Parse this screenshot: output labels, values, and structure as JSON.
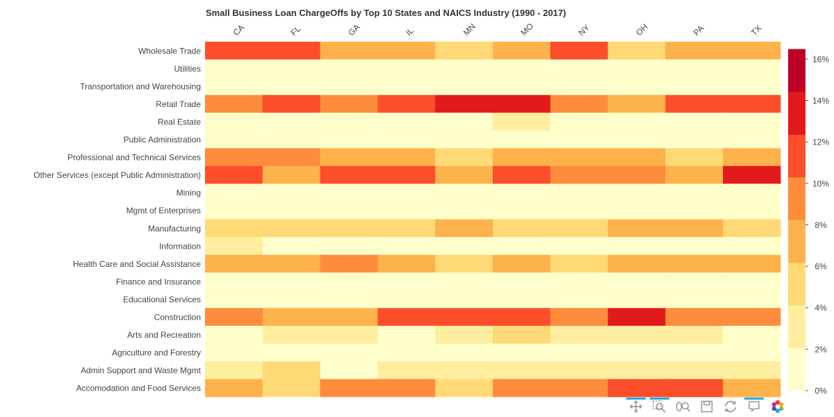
{
  "chart_data": {
    "type": "heatmap",
    "title": "Small Business Loan ChargeOffs by Top 10 States and NAICS Industry (1990 - 2017)",
    "x_categories": [
      "CA",
      "FL",
      "GA",
      "IL",
      "MN",
      "MO",
      "NY",
      "OH",
      "PA",
      "TX"
    ],
    "y_categories": [
      "Wholesale Trade",
      "Utilities",
      "Transportation and Warehousing",
      "Retail Trade",
      "Real Estate",
      "Public Administration",
      "Professional and Technical Services",
      "Other Services (except Public Administration)",
      "Mining",
      "Mgmt of Enterprises",
      "Manufacturing",
      "Information",
      "Health Care and Social Assistance",
      "Finance and Insurance",
      "Educational Services",
      "Construction",
      "Arts and Recreation",
      "Agriculture and Forestry",
      "Admin Support and Waste Mgmt",
      "Accomodation and Food Services"
    ],
    "values": [
      [
        11.5,
        11.5,
        7.5,
        7.5,
        5,
        7.5,
        11.5,
        5,
        7.5,
        7.5
      ],
      [
        0.5,
        0.5,
        0.5,
        0.5,
        0.5,
        0.5,
        0.5,
        0.5,
        0.5,
        0.5
      ],
      [
        0.5,
        0.5,
        0.5,
        0.5,
        0.5,
        0.5,
        0.5,
        0.5,
        0.5,
        0.5
      ],
      [
        9,
        11.5,
        9,
        11.5,
        13.5,
        13.5,
        9,
        7.5,
        11.5,
        11.5
      ],
      [
        0.5,
        0.5,
        0.5,
        0.5,
        0.5,
        3,
        0.5,
        0.5,
        0.5,
        0.5
      ],
      [
        0.5,
        0.5,
        0.5,
        0.5,
        0.5,
        0.5,
        0.5,
        0.5,
        0.5,
        0.5
      ],
      [
        9,
        9,
        7.5,
        7.5,
        5,
        7.5,
        7.5,
        7.5,
        5,
        7.5
      ],
      [
        11.5,
        7.5,
        11.5,
        11.5,
        7.5,
        11.5,
        9,
        9,
        7.5,
        13.5
      ],
      [
        0.5,
        0.5,
        0.5,
        0.5,
        0.5,
        0.5,
        0.5,
        0.5,
        0.5,
        0.5
      ],
      [
        0.5,
        0.5,
        0.5,
        0.5,
        0.5,
        0.5,
        0.5,
        0.5,
        0.5,
        0.5
      ],
      [
        5,
        5,
        5,
        5,
        7.5,
        5,
        5,
        7.5,
        7.5,
        5
      ],
      [
        3,
        0.5,
        0.5,
        0.5,
        0.5,
        0.5,
        0.5,
        0.5,
        0.5,
        0.5
      ],
      [
        7.5,
        7.5,
        9,
        7.5,
        5,
        7.5,
        5,
        7.5,
        7.5,
        7.5
      ],
      [
        0.5,
        0.5,
        0.5,
        0.5,
        0.5,
        0.5,
        0.5,
        0.5,
        0.5,
        0.5
      ],
      [
        0.5,
        0.5,
        0.5,
        0.5,
        0.5,
        0.5,
        0.5,
        0.5,
        0.5,
        0.5
      ],
      [
        9,
        7.5,
        7.5,
        11.5,
        11.5,
        11.5,
        9,
        13.5,
        9,
        9
      ],
      [
        1.5,
        3,
        3,
        1.5,
        3,
        5,
        3,
        3,
        3,
        1.5
      ],
      [
        0.5,
        0.5,
        0.5,
        0.5,
        0.5,
        0.5,
        0.5,
        0.5,
        0.5,
        0.5
      ],
      [
        3,
        5,
        0.5,
        3,
        3,
        3,
        3,
        3,
        3,
        3
      ],
      [
        7.5,
        5,
        9,
        9,
        5,
        9,
        9,
        11.5,
        11.5,
        7.5
      ]
    ],
    "colorscale": {
      "min": 0,
      "max": 16.5,
      "band_width": 2.06,
      "colors": [
        "#ffffcc",
        "#ffeda0",
        "#fed976",
        "#feb24c",
        "#fd8d3c",
        "#fc4e2a",
        "#e31a1c",
        "#bd0026"
      ]
    },
    "colorbar": {
      "tick_values": [
        0,
        2,
        4,
        6,
        8,
        10,
        12,
        14,
        16
      ],
      "tick_labels": [
        "0%",
        "2%",
        "4%",
        "6%",
        "8%",
        "10%",
        "12%",
        "14%",
        "16%"
      ]
    },
    "xlabel": "",
    "ylabel": ""
  },
  "toolbar": {
    "tools": [
      {
        "name": "pan-tool-icon",
        "active": true
      },
      {
        "name": "box-zoom-tool-icon",
        "active": true
      },
      {
        "name": "wheel-zoom-tool-icon",
        "active": false
      },
      {
        "name": "save-tool-icon",
        "active": false
      },
      {
        "name": "reset-tool-icon",
        "active": false
      },
      {
        "name": "hover-tool-icon",
        "active": true
      },
      {
        "name": "bokeh-logo-icon",
        "active": false
      }
    ]
  }
}
